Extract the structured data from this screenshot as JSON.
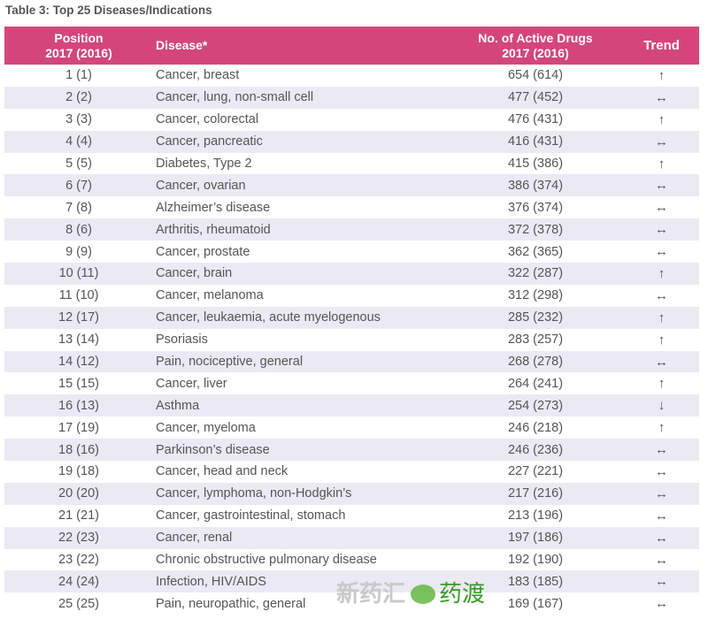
{
  "title": "Table 3: Top 25 Diseases/Indications",
  "header": {
    "position_line1": "Position",
    "position_line2": "2017 (2016)",
    "disease": "Disease*",
    "drugs_line1": "No. of Active Drugs",
    "drugs_line2": "2017 (2016)",
    "trend": "Trend"
  },
  "colors": {
    "header_bg": "#d4467b",
    "alt_row": "#ebe9f3"
  },
  "rows": [
    {
      "position": "1 (1)",
      "disease": "Cancer, breast",
      "drugs": "654 (614)",
      "trend": "↑"
    },
    {
      "position": "2 (2)",
      "disease": "Cancer, lung, non-small cell",
      "drugs": "477 (452)",
      "trend": "↔"
    },
    {
      "position": "3 (3)",
      "disease": "Cancer, colorectal",
      "drugs": "476 (431)",
      "trend": "↑"
    },
    {
      "position": "4 (4)",
      "disease": "Cancer, pancreatic",
      "drugs": "416 (431)",
      "trend": "↔"
    },
    {
      "position": "5 (5)",
      "disease": "Diabetes, Type 2",
      "drugs": "415 (386)",
      "trend": "↑"
    },
    {
      "position": "6 (7)",
      "disease": "Cancer, ovarian",
      "drugs": "386 (374)",
      "trend": "↔"
    },
    {
      "position": "7 (8)",
      "disease": "Alzheimer’s disease",
      "drugs": "376 (374)",
      "trend": "↔"
    },
    {
      "position": "8 (6)",
      "disease": "Arthritis, rheumatoid",
      "drugs": "372 (378)",
      "trend": "↔"
    },
    {
      "position": "9 (9)",
      "disease": "Cancer, prostate",
      "drugs": "362 (365)",
      "trend": "↔"
    },
    {
      "position": "10 (11)",
      "disease": "Cancer, brain",
      "drugs": "322 (287)",
      "trend": "↑"
    },
    {
      "position": "11 (10)",
      "disease": "Cancer, melanoma",
      "drugs": "312 (298)",
      "trend": "↔"
    },
    {
      "position": "12 (17)",
      "disease": "Cancer, leukaemia, acute myelogenous",
      "drugs": "285 (232)",
      "trend": "↑"
    },
    {
      "position": "13 (14)",
      "disease": "Psoriasis",
      "drugs": "283 (257)",
      "trend": "↑"
    },
    {
      "position": "14 (12)",
      "disease": "Pain, nociceptive, general",
      "drugs": "268 (278)",
      "trend": "↔"
    },
    {
      "position": "15 (15)",
      "disease": "Cancer, liver",
      "drugs": "264 (241)",
      "trend": "↑"
    },
    {
      "position": "16 (13)",
      "disease": "Asthma",
      "drugs": "254 (273)",
      "trend": "↓"
    },
    {
      "position": "17 (19)",
      "disease": "Cancer, myeloma",
      "drugs": "246 (218)",
      "trend": "↑"
    },
    {
      "position": "18 (16)",
      "disease": "Parkinson’s disease",
      "drugs": "246 (236)",
      "trend": "↔"
    },
    {
      "position": "19 (18)",
      "disease": "Cancer, head and neck",
      "drugs": "227 (221)",
      "trend": "↔"
    },
    {
      "position": "20 (20)",
      "disease": "Cancer, lymphoma, non-Hodgkin’s",
      "drugs": "217 (216)",
      "trend": "↔"
    },
    {
      "position": "21 (21)",
      "disease": "Cancer, gastrointestinal, stomach",
      "drugs": "213 (196)",
      "trend": "↔"
    },
    {
      "position": "22 (23)",
      "disease": "Cancer, renal",
      "drugs": "197 (186)",
      "trend": "↔"
    },
    {
      "position": "23 (22)",
      "disease": "Chronic obstructive pulmonary disease",
      "drugs": "192 (190)",
      "trend": "↔"
    },
    {
      "position": "24 (24)",
      "disease": "Infection, HIV/AIDS",
      "drugs": "183 (185)",
      "trend": "↔"
    },
    {
      "position": "25 (25)",
      "disease": "Pain, neuropathic, general",
      "drugs": "169 (167)",
      "trend": "↔"
    }
  ],
  "watermark": {
    "text1": "新药汇",
    "text2": "药渡"
  }
}
